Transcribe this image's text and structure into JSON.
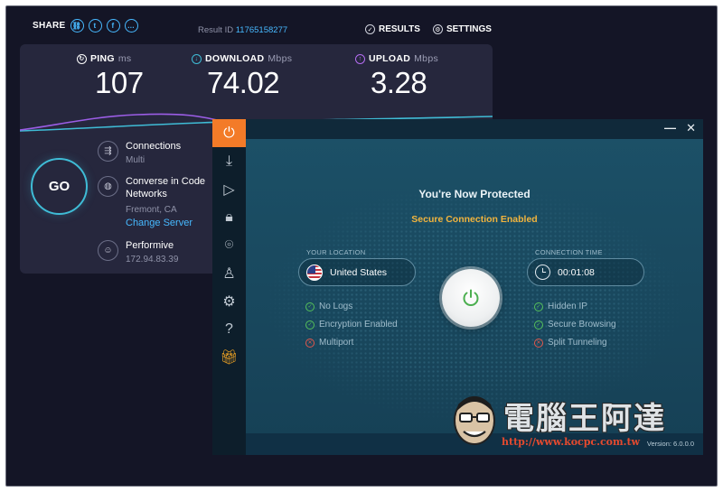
{
  "speedtest": {
    "share_label": "SHARE",
    "share_icons": [
      "link-icon",
      "twitter-icon",
      "facebook-icon",
      "more-icon"
    ],
    "result_label": "Result ID",
    "result_id": "11765158277",
    "results_label": "RESULTS",
    "settings_label": "SETTINGS",
    "metrics": {
      "ping": {
        "label": "PING",
        "unit": "ms",
        "value": "107"
      },
      "download": {
        "label": "DOWNLOAD",
        "unit": "Mbps",
        "value": "74.02"
      },
      "upload": {
        "label": "UPLOAD",
        "unit": "Mbps",
        "value": "3.28"
      }
    },
    "go_label": "GO",
    "connections": {
      "title": "Connections",
      "value": "Multi"
    },
    "server": {
      "name_line1": "Converse in Code",
      "name_line2": "Networks",
      "location": "Fremont, CA",
      "change_link": "Change Server"
    },
    "isp": {
      "name": "Performive",
      "ip": "172.94.83.39"
    },
    "colors": {
      "accent": "#47b9ff",
      "download": "#3fbcd6",
      "upload": "#9b5de5",
      "background": "#141526"
    }
  },
  "vpn": {
    "headline": "You're Now Protected",
    "subheadline": "Secure Connection Enabled",
    "location_label": "YOUR LOCATION",
    "location_value": "United States",
    "time_label": "CONNECTION TIME",
    "time_value": "00:01:08",
    "features_left": [
      {
        "label": "No Logs",
        "status": "enabled"
      },
      {
        "label": "Encryption Enabled",
        "status": "enabled"
      },
      {
        "label": "Multiport",
        "status": "disabled"
      }
    ],
    "features_right": [
      {
        "label": "Hidden IP",
        "status": "enabled"
      },
      {
        "label": "Secure Browsing",
        "status": "enabled"
      },
      {
        "label": "Split Tunneling",
        "status": "disabled"
      }
    ],
    "version": "Version: 6.0.0.0",
    "sidebar_icons": [
      "power-icon",
      "download-icon",
      "play-icon",
      "lock-icon",
      "location-pin-icon",
      "user-icon",
      "gear-icon",
      "help-icon",
      "gift-icon"
    ],
    "colors": {
      "accent": "#f37b28",
      "enabled": "#55c15a",
      "disabled": "#e2574c",
      "subheadline": "#f2b43d"
    }
  },
  "watermark": {
    "title": "電腦王阿達",
    "url": "http://www.kocpc.com.tw"
  }
}
